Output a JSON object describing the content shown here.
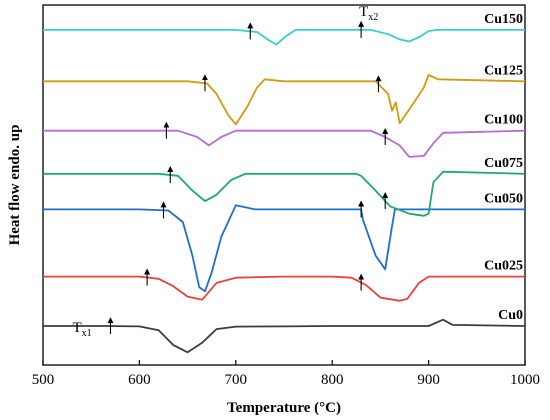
{
  "chart_data": {
    "type": "line",
    "xlabel": "Temperature (°C)",
    "ylabel": "Heat flow endo. up",
    "xlim": [
      500,
      1000
    ],
    "xticks": [
      500,
      600,
      700,
      800,
      900,
      1000
    ],
    "grid": false,
    "series": [
      {
        "name": "Cu0",
        "color": "#3c3c3c",
        "offset": 0.0,
        "points": [
          [
            500,
            0
          ],
          [
            560,
            0
          ],
          [
            600,
            -0.02
          ],
          [
            620,
            -0.2
          ],
          [
            635,
            -0.9
          ],
          [
            650,
            -1.25
          ],
          [
            665,
            -0.8
          ],
          [
            680,
            -0.15
          ],
          [
            700,
            -0.03
          ],
          [
            750,
            -0.02
          ],
          [
            800,
            0
          ],
          [
            850,
            0
          ],
          [
            900,
            0
          ],
          [
            905,
            0.1
          ],
          [
            915,
            0.3
          ],
          [
            925,
            0.05
          ],
          [
            1000,
            0
          ]
        ],
        "markers": [
          {
            "x": 570,
            "label": "T",
            "sub": "x1"
          }
        ]
      },
      {
        "name": "Cu025",
        "color": "#e8423a",
        "offset": 2.35,
        "points": [
          [
            500,
            0
          ],
          [
            600,
            0
          ],
          [
            620,
            -0.1
          ],
          [
            635,
            -0.45
          ],
          [
            650,
            -0.95
          ],
          [
            665,
            -1.1
          ],
          [
            680,
            -0.3
          ],
          [
            700,
            -0.05
          ],
          [
            750,
            0
          ],
          [
            800,
            0
          ],
          [
            820,
            -0.05
          ],
          [
            835,
            -0.4
          ],
          [
            850,
            -1.0
          ],
          [
            870,
            -1.15
          ],
          [
            878,
            -1.05
          ],
          [
            890,
            -0.3
          ],
          [
            900,
            0
          ],
          [
            1000,
            0
          ]
        ],
        "markers": [
          {
            "x": 608
          },
          {
            "x": 830
          }
        ]
      },
      {
        "name": "Cu050",
        "color": "#1f6dd1",
        "offset": 5.55,
        "points": [
          [
            500,
            0
          ],
          [
            600,
            0
          ],
          [
            630,
            -0.05
          ],
          [
            645,
            -0.6
          ],
          [
            655,
            -2.2
          ],
          [
            662,
            -3.7
          ],
          [
            668,
            -3.9
          ],
          [
            675,
            -3.0
          ],
          [
            685,
            -1.3
          ],
          [
            695,
            -0.3
          ],
          [
            700,
            0.2
          ],
          [
            720,
            0
          ],
          [
            750,
            0
          ],
          [
            800,
            0
          ],
          [
            825,
            0
          ],
          [
            830,
            0
          ],
          [
            832,
            -0.5
          ],
          [
            845,
            -2.2
          ],
          [
            855,
            -2.85
          ],
          [
            862,
            -0.8
          ],
          [
            865,
            0
          ],
          [
            900,
            0
          ],
          [
            1000,
            0
          ]
        ],
        "markers": [
          {
            "x": 625
          },
          {
            "x": 830
          }
        ]
      },
      {
        "name": "Cu075",
        "color": "#1faa6a",
        "offset": 7.25,
        "points": [
          [
            500,
            0
          ],
          [
            620,
            0
          ],
          [
            640,
            -0.1
          ],
          [
            655,
            -0.8
          ],
          [
            668,
            -1.3
          ],
          [
            680,
            -1.0
          ],
          [
            695,
            -0.3
          ],
          [
            710,
            0
          ],
          [
            800,
            0
          ],
          [
            825,
            0
          ],
          [
            830,
            -0.1
          ],
          [
            845,
            -0.8
          ],
          [
            860,
            -1.55
          ],
          [
            880,
            -1.9
          ],
          [
            895,
            -2.0
          ],
          [
            900,
            -1.9
          ],
          [
            905,
            -0.4
          ],
          [
            915,
            0.1
          ],
          [
            1000,
            0
          ]
        ],
        "markers": [
          {
            "x": 632
          },
          {
            "x": 855
          }
        ]
      },
      {
        "name": "Cu100",
        "color": "#b86ad6",
        "offset": 9.3,
        "points": [
          [
            500,
            0
          ],
          [
            600,
            0
          ],
          [
            640,
            0
          ],
          [
            660,
            -0.3
          ],
          [
            672,
            -0.7
          ],
          [
            685,
            -0.3
          ],
          [
            700,
            0
          ],
          [
            800,
            0
          ],
          [
            840,
            0
          ],
          [
            855,
            -0.3
          ],
          [
            870,
            -0.7
          ],
          [
            880,
            -1.25
          ],
          [
            895,
            -1.2
          ],
          [
            905,
            -0.6
          ],
          [
            915,
            -0.1
          ],
          [
            1000,
            0
          ]
        ],
        "markers": [
          {
            "x": 628
          },
          {
            "x": 855
          }
        ]
      },
      {
        "name": "Cu125",
        "color": "#d49a10",
        "offset": 11.65,
        "points": [
          [
            500,
            0
          ],
          [
            650,
            0
          ],
          [
            670,
            -0.1
          ],
          [
            680,
            -0.6
          ],
          [
            692,
            -1.6
          ],
          [
            700,
            -2.05
          ],
          [
            712,
            -1.2
          ],
          [
            722,
            -0.3
          ],
          [
            730,
            0.1
          ],
          [
            750,
            0
          ],
          [
            800,
            0
          ],
          [
            845,
            0
          ],
          [
            858,
            -0.6
          ],
          [
            862,
            -1.4
          ],
          [
            866,
            -1.0
          ],
          [
            870,
            -2.0
          ],
          [
            876,
            -1.6
          ],
          [
            885,
            -1.0
          ],
          [
            895,
            -0.3
          ],
          [
            900,
            0.3
          ],
          [
            910,
            0.1
          ],
          [
            1000,
            0
          ]
        ],
        "markers": [
          {
            "x": 668
          },
          {
            "x": 848
          }
        ]
      },
      {
        "name": "Cu150",
        "color": "#3dcdc9",
        "offset": 14.1,
        "points": [
          [
            500,
            0
          ],
          [
            700,
            0
          ],
          [
            722,
            -0.1
          ],
          [
            733,
            -0.45
          ],
          [
            742,
            -0.7
          ],
          [
            752,
            -0.3
          ],
          [
            762,
            0
          ],
          [
            800,
            0
          ],
          [
            840,
            0
          ],
          [
            858,
            -0.2
          ],
          [
            870,
            -0.45
          ],
          [
            880,
            -0.55
          ],
          [
            892,
            -0.3
          ],
          [
            900,
            -0.05
          ],
          [
            910,
            0
          ],
          [
            1000,
            0
          ]
        ],
        "markers": [
          {
            "x": 715
          },
          {
            "x": 830,
            "label": "T",
            "sub": "x2"
          }
        ]
      }
    ]
  }
}
